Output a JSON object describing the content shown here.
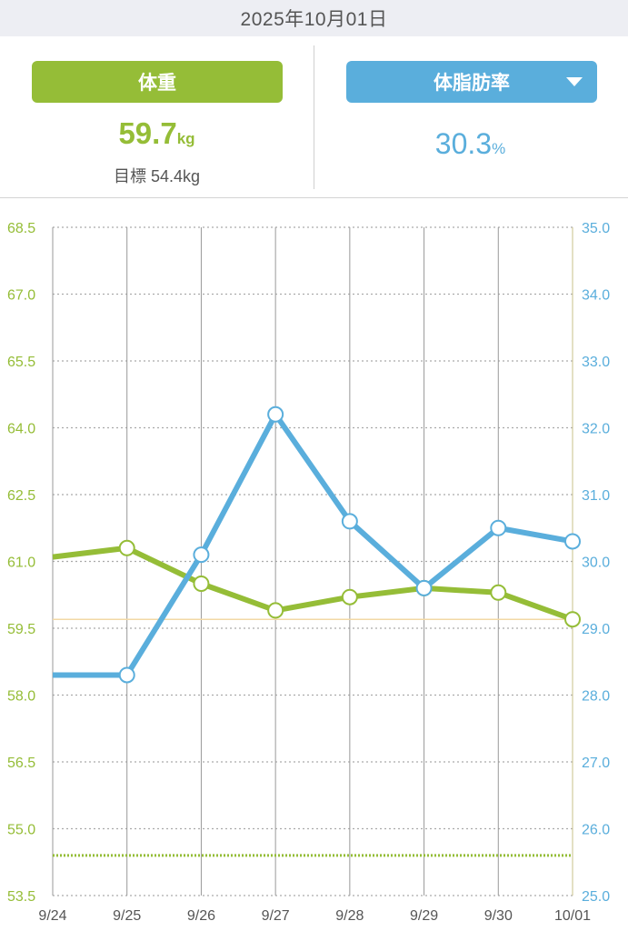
{
  "header": {
    "date": "2025年10月01日"
  },
  "summary": {
    "weight_label": "体重",
    "weight_value": "59.7",
    "weight_unit": "kg",
    "goal_label": "目標 54.4kg",
    "fat_label": "体脂肪率",
    "fat_value": "30.3",
    "fat_unit": "%",
    "dropdown_icon": "triangle-down-icon"
  },
  "colors": {
    "weight": "#95bd37",
    "fat": "#5aaedc",
    "current_line": "#f3d9a6"
  },
  "chart_data": {
    "type": "line",
    "categories": [
      "9/24",
      "9/25",
      "9/26",
      "9/27",
      "9/28",
      "9/29",
      "9/30",
      "10/01"
    ],
    "series": [
      {
        "name": "体重",
        "axis": "left",
        "unit": "kg",
        "values": [
          61.1,
          61.3,
          60.5,
          59.9,
          60.2,
          60.4,
          60.3,
          59.7
        ]
      },
      {
        "name": "体脂肪率",
        "axis": "right",
        "unit": "%",
        "values": [
          28.3,
          28.3,
          30.1,
          32.2,
          30.6,
          29.6,
          30.5,
          30.3
        ]
      }
    ],
    "left_axis": {
      "range": [
        53.5,
        68.5
      ],
      "ticks": [
        "53.5",
        "55.0",
        "56.5",
        "58.0",
        "59.5",
        "61.0",
        "62.5",
        "64.0",
        "65.5",
        "67.0",
        "68.5"
      ]
    },
    "right_axis": {
      "range": [
        25.0,
        35.0
      ],
      "ticks": [
        "25.0",
        "26.0",
        "27.0",
        "28.0",
        "29.0",
        "30.0",
        "31.0",
        "32.0",
        "33.0",
        "34.0",
        "35.0"
      ]
    },
    "goal_weight": 54.4,
    "current_weight_line": 59.7,
    "grid": true
  }
}
